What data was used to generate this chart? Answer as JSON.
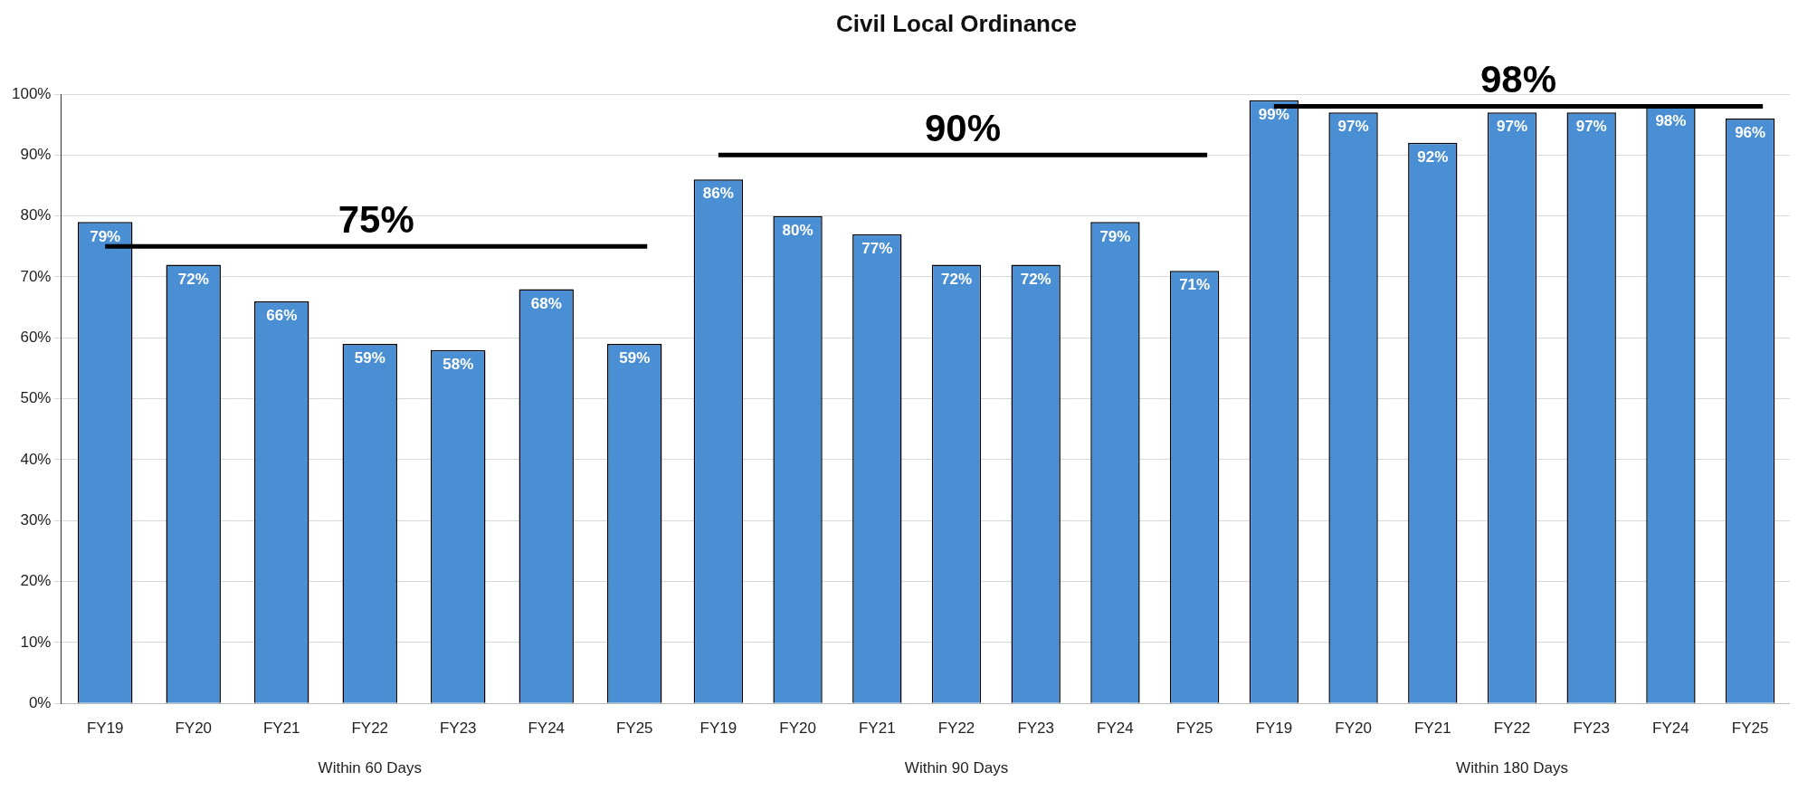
{
  "chart_data": [
    {
      "type": "bar",
      "categories": [
        "FY19",
        "FY20",
        "FY21",
        "FY22",
        "FY23",
        "FY24",
        "FY25"
      ],
      "values": [
        79,
        72,
        66,
        59,
        58,
        68,
        59
      ],
      "value_labels": [
        "79%",
        "72%",
        "66%",
        "59%",
        "58%",
        "68%",
        "59%"
      ],
      "color": "#4a8fd4",
      "ylim": [
        0,
        100
      ],
      "yticks": [
        {
          "value": 0,
          "label": "0%"
        },
        {
          "value": 10,
          "label": "10%"
        },
        {
          "value": 20,
          "label": "20%"
        },
        {
          "value": 30,
          "label": "30%"
        },
        {
          "value": 40,
          "label": "40%"
        },
        {
          "value": 50,
          "label": "50%"
        },
        {
          "value": 60,
          "label": "60%"
        },
        {
          "value": 70,
          "label": "70%"
        },
        {
          "value": 80,
          "label": "80%"
        },
        {
          "value": 90,
          "label": "90%"
        },
        {
          "value": 100,
          "label": "100%"
        }
      ],
      "grid": "y",
      "xlabel": "Within 60 Days",
      "ref_lines": [
        {
          "axis": "y",
          "value": 75,
          "label": "75%",
          "color": "#000000"
        }
      ]
    },
    {
      "type": "bar",
      "title": "Civil Local Ordinance",
      "categories": [
        "FY19",
        "FY20",
        "FY21",
        "FY22",
        "FY23",
        "FY24",
        "FY25"
      ],
      "values": [
        86,
        80,
        77,
        72,
        72,
        79,
        71
      ],
      "value_labels": [
        "86%",
        "80%",
        "77%",
        "72%",
        "72%",
        "79%",
        "71%"
      ],
      "color": "#4a8fd4",
      "ylim": [
        0,
        100
      ],
      "yticks": [
        0,
        10,
        20,
        30,
        40,
        50,
        60,
        70,
        80,
        90,
        100
      ],
      "grid": "y",
      "tick_labels": "x",
      "xlabel": "Within 90 Days",
      "ref_lines": [
        {
          "axis": "y",
          "value": 90,
          "label": "90%",
          "color": "#000000"
        }
      ]
    },
    {
      "type": "bar",
      "categories": [
        "FY19",
        "FY20",
        "FY21",
        "FY22",
        "FY23",
        "FY24",
        "FY25"
      ],
      "values": [
        99,
        97,
        92,
        97,
        97,
        98,
        96
      ],
      "value_labels": [
        "99%",
        "97%",
        "92%",
        "97%",
        "97%",
        "98%",
        "96%"
      ],
      "color": "#4a8fd4",
      "ylim": [
        0,
        100
      ],
      "yticks": [
        0,
        10,
        20,
        30,
        40,
        50,
        60,
        70,
        80,
        90,
        100
      ],
      "grid": "y",
      "tick_labels": "x",
      "xlabel": "Within 180 Days",
      "ref_lines": [
        {
          "axis": "y",
          "value": 98,
          "label": "98%",
          "color": "#000000"
        }
      ]
    }
  ]
}
